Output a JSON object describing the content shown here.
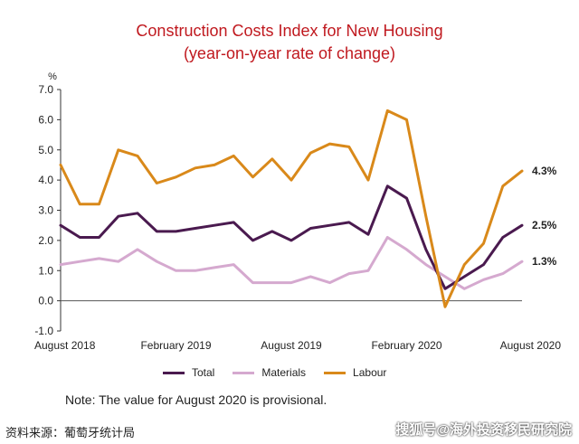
{
  "chart_data": {
    "type": "line",
    "title": "Construction Costs Index for New Housing",
    "subtitle": "(year-on-year rate of change)",
    "ylabel": "%",
    "ylim": [
      -1.0,
      7.0
    ],
    "yticks": [
      "7.0",
      "6.0",
      "5.0",
      "4.0",
      "3.0",
      "2.0",
      "1.0",
      "0.0",
      "-1.0"
    ],
    "xticklabels": [
      "August 2018",
      "February 2019",
      "August 2019",
      "February 2020",
      "August 2020"
    ],
    "x": [
      "Aug 2018",
      "Sep 2018",
      "Oct 2018",
      "Nov 2018",
      "Dec 2018",
      "Jan 2019",
      "Feb 2019",
      "Mar 2019",
      "Apr 2019",
      "May 2019",
      "Jun 2019",
      "Jul 2019",
      "Aug 2019",
      "Sep 2019",
      "Oct 2019",
      "Nov 2019",
      "Dec 2019",
      "Jan 2020",
      "Feb 2020",
      "Mar 2020",
      "Apr 2020",
      "May 2020",
      "Jun 2020",
      "Jul 2020",
      "Aug 2020"
    ],
    "series": [
      {
        "name": "Total",
        "color": "#4a1a4f",
        "values": [
          2.5,
          2.1,
          2.1,
          2.8,
          2.9,
          2.3,
          2.3,
          2.4,
          2.5,
          2.6,
          2.0,
          2.3,
          2.0,
          2.4,
          2.5,
          2.6,
          2.2,
          3.8,
          3.4,
          1.7,
          0.4,
          0.8,
          1.2,
          2.1,
          2.5
        ],
        "end_label": "2.5%"
      },
      {
        "name": "Materials",
        "color": "#d5a9cf",
        "values": [
          1.2,
          1.3,
          1.4,
          1.3,
          1.7,
          1.3,
          1.0,
          1.0,
          1.1,
          1.2,
          0.6,
          0.6,
          0.6,
          0.8,
          0.6,
          0.9,
          1.0,
          2.1,
          1.7,
          1.2,
          0.8,
          0.4,
          0.7,
          0.9,
          1.3
        ],
        "end_label": "1.3%"
      },
      {
        "name": "Labour",
        "color": "#d9891a",
        "values": [
          4.5,
          3.2,
          3.2,
          5.0,
          4.8,
          3.9,
          4.1,
          4.4,
          4.5,
          4.8,
          4.1,
          4.7,
          4.0,
          4.9,
          5.2,
          5.1,
          4.0,
          6.3,
          6.0,
          2.8,
          -0.2,
          1.2,
          1.9,
          3.8,
          4.3
        ],
        "end_label": "4.3%"
      }
    ]
  },
  "note": "Note: The value for August 2020 is provisional.",
  "source": "资料来源：葡萄牙统计局",
  "watermark": "搜狐号@海外投资移民研究院"
}
